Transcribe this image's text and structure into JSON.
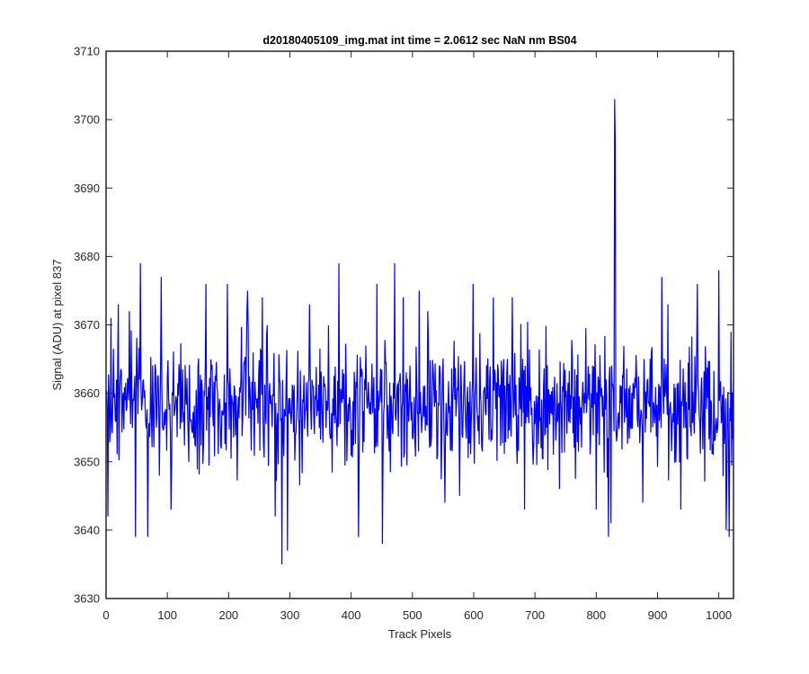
{
  "chart_data": {
    "type": "line",
    "title": "d20180405109_img.mat int time = 2.0612 sec  NaN nm BS04",
    "xlabel": "Track Pixels",
    "ylabel": "Signal (ADU) at pixel 837",
    "xlim": [
      0,
      1024
    ],
    "ylim": [
      3630,
      3710
    ],
    "xticks": [
      0,
      100,
      200,
      300,
      400,
      500,
      600,
      700,
      800,
      900,
      1000
    ],
    "yticks": [
      3630,
      3640,
      3650,
      3660,
      3670,
      3680,
      3690,
      3700,
      3710
    ],
    "grid": false,
    "legend": "none",
    "series": [
      {
        "color": "#0000ff",
        "x_start": 1,
        "x_step": 1,
        "noise": {
          "mean": 3658.5,
          "min": 3635,
          "max": 3679
        },
        "peaks": [
          {
            "x": 3,
            "y": 3642
          },
          {
            "x": 8,
            "y": 3671
          },
          {
            "x": 20,
            "y": 3637
          },
          {
            "x": 20,
            "y": 3673
          },
          {
            "x": 38,
            "y": 3672
          },
          {
            "x": 48,
            "y": 3639
          },
          {
            "x": 56,
            "y": 3679
          },
          {
            "x": 68,
            "y": 3639
          },
          {
            "x": 90,
            "y": 3677
          },
          {
            "x": 106,
            "y": 3643
          },
          {
            "x": 163,
            "y": 3676
          },
          {
            "x": 198,
            "y": 3676
          },
          {
            "x": 231,
            "y": 3675
          },
          {
            "x": 255,
            "y": 3674
          },
          {
            "x": 276,
            "y": 3642
          },
          {
            "x": 287,
            "y": 3635
          },
          {
            "x": 296,
            "y": 3637
          },
          {
            "x": 332,
            "y": 3673
          },
          {
            "x": 380,
            "y": 3679
          },
          {
            "x": 412,
            "y": 3639
          },
          {
            "x": 442,
            "y": 3676
          },
          {
            "x": 451,
            "y": 3638
          },
          {
            "x": 471,
            "y": 3679
          },
          {
            "x": 485,
            "y": 3674
          },
          {
            "x": 511,
            "y": 3675
          },
          {
            "x": 525,
            "y": 3672
          },
          {
            "x": 553,
            "y": 3644
          },
          {
            "x": 577,
            "y": 3645
          },
          {
            "x": 599,
            "y": 3676
          },
          {
            "x": 632,
            "y": 3674
          },
          {
            "x": 663,
            "y": 3674
          },
          {
            "x": 683,
            "y": 3643
          },
          {
            "x": 740,
            "y": 3646
          },
          {
            "x": 800,
            "y": 3643
          },
          {
            "x": 820,
            "y": 3639
          },
          {
            "x": 824,
            "y": 3641
          },
          {
            "x": 830,
            "y": 3703
          },
          {
            "x": 831,
            "y": 3697
          },
          {
            "x": 876,
            "y": 3644
          },
          {
            "x": 907,
            "y": 3677
          },
          {
            "x": 917,
            "y": 3673
          },
          {
            "x": 938,
            "y": 3643
          },
          {
            "x": 965,
            "y": 3676
          },
          {
            "x": 1000,
            "y": 3678
          },
          {
            "x": 1012,
            "y": 3640
          },
          {
            "x": 1017,
            "y": 3639
          },
          {
            "x": 1020,
            "y": 3669
          }
        ]
      }
    ]
  }
}
